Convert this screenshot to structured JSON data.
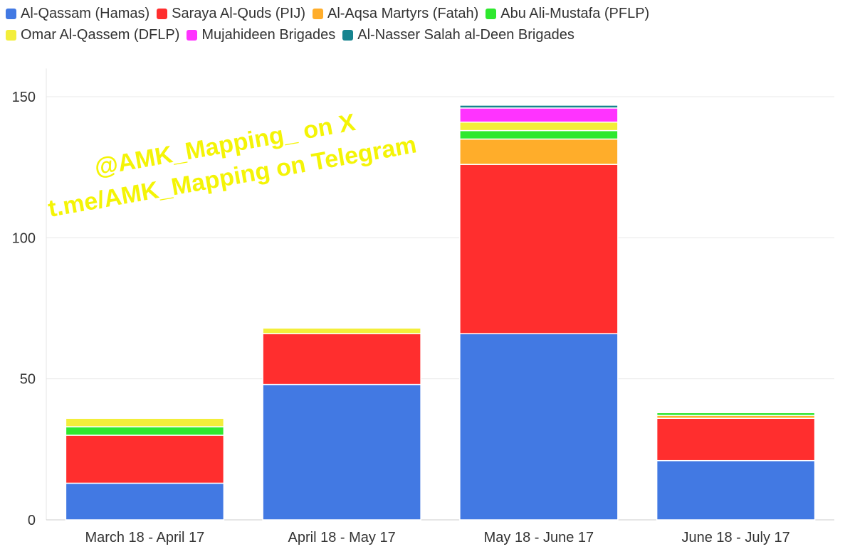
{
  "chart_data": {
    "type": "bar",
    "stacked": true,
    "categories": [
      "March 18 - April 17",
      "April 18 - May 17",
      "May 18 - June 17",
      "June 18 - July 17"
    ],
    "series": [
      {
        "name": "Al-Qassam (Hamas)",
        "color": "#4279e3",
        "values": [
          13,
          48,
          66,
          21
        ]
      },
      {
        "name": "Saraya Al-Quds (PIJ)",
        "color": "#ff2e2e",
        "values": [
          17,
          18,
          60,
          15
        ]
      },
      {
        "name": "Al-Aqsa Martyrs (Fatah)",
        "color": "#ffad2a",
        "values": [
          0,
          0,
          9,
          1
        ]
      },
      {
        "name": "Abu Ali-Mustafa (PFLP)",
        "color": "#2ee82e",
        "values": [
          3,
          0,
          3,
          1
        ]
      },
      {
        "name": "Omar Al-Qassem (DFLP)",
        "color": "#f3ee3a",
        "values": [
          3,
          2,
          3,
          0
        ]
      },
      {
        "name": "Mujahideen Brigades",
        "color": "#ff33ff",
        "values": [
          0,
          0,
          5,
          0
        ]
      },
      {
        "name": "Al-Nasser Salah al-Deen Brigades",
        "color": "#16848f",
        "values": [
          0,
          0,
          1,
          0
        ]
      }
    ],
    "yticks": [
      0,
      50,
      100,
      150
    ],
    "ylim": [
      0,
      160
    ],
    "grid": true,
    "legend_position": "top",
    "watermark": [
      "@AMK_Mapping_ on X",
      "t.me/AMK_Mapping on Telegram"
    ]
  }
}
